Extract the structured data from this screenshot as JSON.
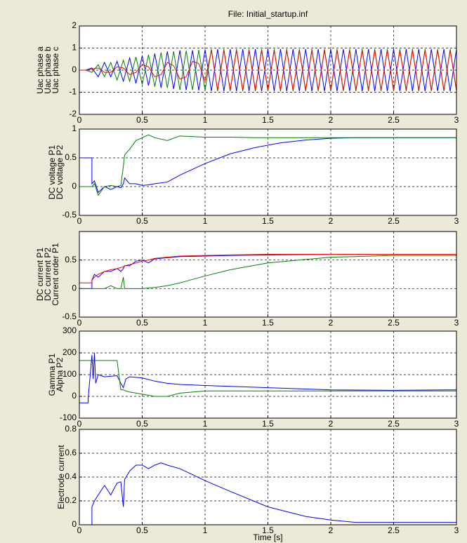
{
  "chart_data": [
    {
      "type": "line",
      "title": "File: Initial_startup.inf",
      "x": [
        0,
        0.05,
        0.1,
        0.15,
        0.2,
        0.25,
        0.3,
        0.35,
        0.4,
        0.45,
        0.5,
        0.55,
        0.6,
        0.65,
        0.7,
        0.75,
        0.8,
        0.85,
        0.9,
        0.95,
        1,
        1.05,
        1.1,
        1.15,
        1.2,
        1.25,
        1.3,
        1.35,
        1.4,
        1.45,
        1.5,
        1.55,
        1.6,
        1.65,
        1.7,
        1.75,
        1.8,
        1.85,
        1.9,
        1.95,
        2,
        2.05,
        2.1,
        2.15,
        2.2,
        2.25,
        2.3,
        2.35,
        2.4,
        2.45,
        2.5,
        2.55,
        2.6,
        2.65,
        2.7,
        2.75,
        2.8,
        2.85,
        2.9,
        2.95,
        3
      ],
      "series": [
        {
          "name": "Uac phase a",
          "color": "#0000ff",
          "values": [
            0,
            0,
            0.1,
            -0.3,
            0.35,
            -0.3,
            0.4,
            -0.5,
            0.55,
            -0.6,
            0.65,
            -0.7,
            0.75,
            -0.8,
            0.85,
            -0.85,
            0.9,
            -0.9,
            0.9,
            -0.92,
            0.93,
            -0.95,
            0.95,
            -0.95,
            0.95,
            -0.95,
            0.95,
            -0.95,
            0.95,
            -0.95,
            0.95,
            -0.95,
            0.95,
            -0.95,
            0.95,
            -0.95,
            0.95,
            -0.95,
            0.95,
            -0.95,
            0.95,
            -0.95,
            0.95,
            -0.95,
            0.95,
            -0.95,
            0.95,
            -0.95,
            0.95,
            -0.95,
            0.95,
            -0.95,
            0.95,
            -0.95,
            0.95,
            -0.95,
            0.95,
            -0.95,
            0.95,
            -0.95,
            0.95
          ]
        },
        {
          "name": "Uac phase b",
          "color": "#008000",
          "values": [
            0,
            0,
            -0.1,
            0.25,
            -0.3,
            0.35,
            -0.45,
            0.45,
            -0.5,
            0.6,
            -0.65,
            0.7,
            -0.75,
            0.8,
            -0.8,
            0.85,
            -0.9,
            0.88,
            -0.9,
            0.92,
            -0.93,
            0.95,
            -0.95,
            0.95,
            -0.95,
            0.95,
            -0.95,
            0.95,
            -0.95,
            0.95,
            -0.95,
            0.95,
            -0.95,
            0.95,
            -0.95,
            0.95,
            -0.95,
            0.95,
            -0.95,
            0.95,
            -0.95,
            0.95,
            -0.95,
            0.95,
            -0.95,
            0.95,
            -0.95,
            0.95,
            -0.95,
            0.95,
            -0.95,
            0.95,
            -0.95,
            0.95,
            -0.95,
            0.95,
            -0.95,
            0.95,
            -0.95,
            0.95,
            -0.95
          ]
        },
        {
          "name": "Uac phase c",
          "color": "#ff0000",
          "values": [
            0,
            0,
            0.05,
            0.1,
            -0.1,
            -0.1,
            0.15,
            0.1,
            -0.2,
            -0.1,
            0.25,
            0.15,
            -0.3,
            -0.2,
            0.35,
            0.2,
            -0.4,
            -0.3,
            0.4,
            0.3,
            -0.5,
            0.9,
            -0.9,
            0.9,
            -0.9,
            0.9,
            -0.9,
            0.9,
            -0.9,
            0.9,
            -0.9,
            0.9,
            -0.9,
            0.9,
            -0.9,
            0.9,
            -0.9,
            0.9,
            -0.9,
            0.9,
            -0.9,
            0.9,
            -0.9,
            0.9,
            -0.9,
            0.9,
            -0.9,
            0.9,
            -0.9,
            0.9,
            -0.9,
            0.9,
            -0.9,
            0.9,
            -0.9,
            0.9,
            -0.9,
            0.9,
            -0.9,
            0.9,
            -0.9
          ]
        }
      ],
      "xlim": [
        0,
        3
      ],
      "xticks": [
        0,
        0.5,
        1,
        1.5,
        2,
        2.5,
        3
      ],
      "ylim": [
        -2,
        2
      ],
      "yticks": [
        -2,
        -1,
        0,
        1,
        2
      ],
      "grid": true
    },
    {
      "type": "line",
      "x": [
        0,
        0.1,
        0.1,
        0.12,
        0.15,
        0.2,
        0.25,
        0.3,
        0.33,
        0.35,
        0.36,
        0.4,
        0.45,
        0.5,
        0.55,
        0.6,
        0.7,
        0.8,
        1,
        1.2,
        1.4,
        1.6,
        1.8,
        2,
        2.2,
        2.5,
        3
      ],
      "series": [
        {
          "name": "DC voltage P1",
          "color": "#0000ff",
          "values": [
            0.5,
            0.5,
            0.05,
            0.1,
            -0.1,
            0,
            -0.05,
            0,
            -0.02,
            0.05,
            0.15,
            0.05,
            0.05,
            0.02,
            0.03,
            0.05,
            0.08,
            0.2,
            0.4,
            0.57,
            0.68,
            0.76,
            0.81,
            0.84,
            0.85,
            0.85,
            0.85
          ]
        },
        {
          "name": "DC voltage P2",
          "color": "#008000",
          "values": [
            0,
            0,
            0,
            0.05,
            -0.15,
            0,
            0.02,
            0,
            0.02,
            0.35,
            0.55,
            0.65,
            0.8,
            0.85,
            0.9,
            0.85,
            0.8,
            0.88,
            0.86,
            0.86,
            0.85,
            0.85,
            0.85,
            0.85,
            0.85,
            0.85,
            0.85
          ]
        }
      ],
      "xlim": [
        0,
        3
      ],
      "xticks": [
        0,
        0.5,
        1,
        1.5,
        2,
        2.5,
        3
      ],
      "ylim": [
        -0.5,
        1
      ],
      "yticks": [
        -0.5,
        0,
        0.5,
        1
      ],
      "grid": true
    },
    {
      "type": "line",
      "x": [
        0,
        0.1,
        0.1,
        0.12,
        0.15,
        0.2,
        0.25,
        0.3,
        0.33,
        0.35,
        0.36,
        0.4,
        0.45,
        0.5,
        0.55,
        0.6,
        0.7,
        0.8,
        1,
        1.2,
        1.5,
        2,
        2.5,
        3
      ],
      "series": [
        {
          "name": "DC current P1",
          "color": "#0000ff",
          "values": [
            0,
            0,
            0.15,
            0.25,
            0.2,
            0.3,
            0.3,
            0.35,
            0.3,
            0.35,
            0.4,
            0.4,
            0.48,
            0.5,
            0.45,
            0.52,
            0.54,
            0.56,
            0.57,
            0.58,
            0.59,
            0.6,
            0.6,
            0.6
          ]
        },
        {
          "name": "DC current P2",
          "color": "#008000",
          "values": [
            0,
            0,
            0,
            0,
            0,
            0,
            0.05,
            0,
            0,
            0.2,
            0,
            0,
            0,
            0,
            0.01,
            0.02,
            0.05,
            0.1,
            0.22,
            0.33,
            0.45,
            0.55,
            0.58,
            0.58
          ]
        },
        {
          "name": "Current order P1",
          "color": "#ff0000",
          "values": [
            0.1,
            0.1,
            0.15,
            0.2,
            0.25,
            0.3,
            0.33,
            0.35,
            0.37,
            0.38,
            0.4,
            0.42,
            0.45,
            0.48,
            0.5,
            0.53,
            0.55,
            0.57,
            0.58,
            0.59,
            0.6,
            0.6,
            0.6,
            0.6
          ]
        }
      ],
      "xlim": [
        0,
        3
      ],
      "xticks": [
        0,
        0.5,
        1,
        1.5,
        2,
        2.5,
        3
      ],
      "ylim": [
        -0.5,
        1
      ],
      "yticks": [
        -0.5,
        0,
        0.5
      ],
      "grid": true
    },
    {
      "type": "line",
      "x": [
        0,
        0.07,
        0.07,
        0.1,
        0.11,
        0.12,
        0.13,
        0.15,
        0.2,
        0.3,
        0.33,
        0.35,
        0.37,
        0.4,
        0.5,
        0.6,
        0.7,
        0.8,
        1,
        1.5,
        2,
        2.5,
        3
      ],
      "series": [
        {
          "name": "Gamma P1",
          "color": "#0000ff",
          "values": [
            -30,
            -30,
            -10,
            190,
            80,
            200,
            60,
            100,
            90,
            95,
            60,
            40,
            80,
            90,
            85,
            70,
            60,
            55,
            50,
            40,
            30,
            28,
            30
          ]
        },
        {
          "name": "Alpha P2",
          "color": "#008000",
          "values": [
            165,
            165,
            165,
            165,
            165,
            165,
            165,
            165,
            165,
            165,
            30,
            30,
            25,
            20,
            10,
            0,
            0,
            15,
            25,
            25,
            25,
            25,
            25
          ]
        }
      ],
      "xlim": [
        0,
        3
      ],
      "xticks": [
        0,
        0.5,
        1,
        1.5,
        2,
        2.5,
        3
      ],
      "ylim": [
        -100,
        300
      ],
      "yticks": [
        -100,
        0,
        100,
        200,
        300
      ],
      "grid": true
    },
    {
      "type": "line",
      "xlabel": "Time [s]",
      "x": [
        0,
        0.1,
        0.1,
        0.12,
        0.15,
        0.2,
        0.25,
        0.3,
        0.33,
        0.35,
        0.36,
        0.4,
        0.45,
        0.5,
        0.55,
        0.6,
        0.65,
        0.7,
        0.8,
        0.9,
        1,
        1.2,
        1.5,
        1.8,
        2,
        2.2,
        2.5,
        3
      ],
      "series": [
        {
          "name": "Electrode current",
          "color": "#0000ff",
          "values": [
            0,
            0,
            0.15,
            0.2,
            0.25,
            0.33,
            0.25,
            0.35,
            0.36,
            0.15,
            0.38,
            0.45,
            0.5,
            0.5,
            0.47,
            0.5,
            0.52,
            0.5,
            0.47,
            0.42,
            0.37,
            0.28,
            0.15,
            0.07,
            0.04,
            0.02,
            0.02,
            0.02
          ]
        }
      ],
      "xlim": [
        0,
        3
      ],
      "xticks": [
        0,
        0.5,
        1,
        1.5,
        2,
        2.5,
        3
      ],
      "ylim": [
        0,
        0.8
      ],
      "yticks": [
        0,
        0.2,
        0.4,
        0.6,
        0.8
      ],
      "grid": true
    }
  ]
}
